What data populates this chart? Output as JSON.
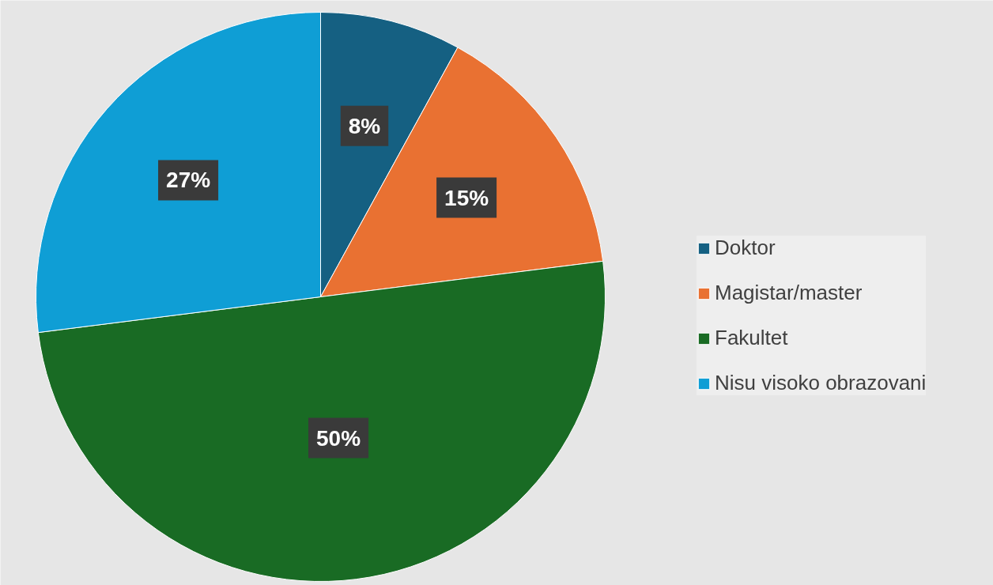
{
  "chart_data": {
    "type": "pie",
    "categories": [
      "Doktor",
      "Magistar/master",
      "Fakultet",
      "Nisu visoko obrazovani"
    ],
    "values": [
      8,
      15,
      50,
      27
    ],
    "colors": [
      "#156082",
      "#e97132",
      "#196b24",
      "#0f9ed5"
    ],
    "value_labels": [
      "8%",
      "15%",
      "50%",
      "27%"
    ],
    "legend": "right"
  }
}
